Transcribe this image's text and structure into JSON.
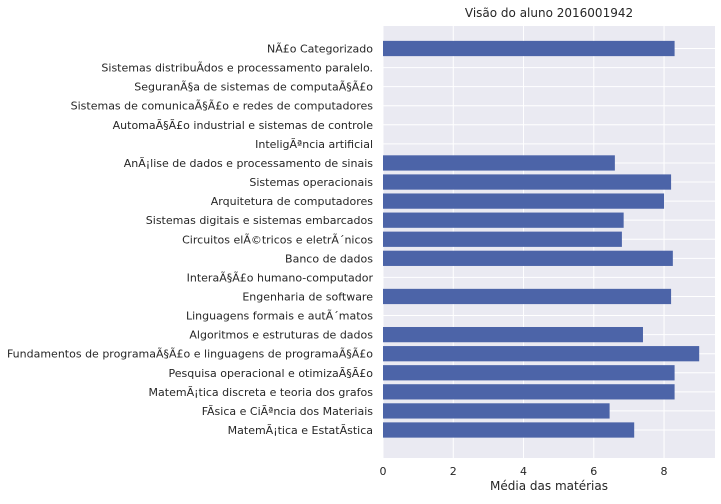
{
  "chart_data": {
    "type": "bar",
    "orientation": "horizontal",
    "title": "Visão do aluno 2016001942",
    "xlabel": "Média das matérias",
    "ylabel": "",
    "xlim": [
      0,
      9.45
    ],
    "xticks": [
      0,
      2,
      4,
      6,
      8
    ],
    "grid": true,
    "color": "#4c64a8",
    "background": "#eaeaf2",
    "categories": [
      "NÃ£o Categorizado",
      "Sistemas distribuÃ­dos e processamento paralelo.",
      "SeguranÃ§a de sistemas de computaÃ§Ã£o",
      "Sistemas de comunicaÃ§Ã£o e redes de computadores",
      "AutomaÃ§Ã£o industrial e sistemas de controle",
      "InteligÃªncia artificial",
      "AnÃ¡lise de dados e processamento de sinais",
      "Sistemas operacionais",
      "Arquitetura de computadores",
      "Sistemas digitais e sistemas embarcados",
      "Circuitos elÃ©tricos e eletrÃ´nicos",
      "Banco de dados",
      "InteraÃ§Ã£o humano-computador",
      "Engenharia de software",
      "Linguagens formais e autÃ´matos",
      "Algoritmos e estruturas de dados",
      "Fundamentos de programaÃ§Ã£o e linguagens de programaÃ§Ã£o",
      "Pesquisa operacional e otimizaÃ§Ã£o",
      "MatemÃ¡tica discreta e teoria dos grafos",
      "FÃ­sica e CiÃªncia dos Materiais",
      "MatemÃ¡tica e EstatÃ­stica"
    ],
    "values": [
      8.3,
      0,
      0,
      0,
      0,
      0,
      6.6,
      8.2,
      8.0,
      6.85,
      6.8,
      8.25,
      0,
      8.2,
      0,
      7.4,
      9.0,
      8.3,
      8.3,
      6.45,
      7.15
    ]
  }
}
